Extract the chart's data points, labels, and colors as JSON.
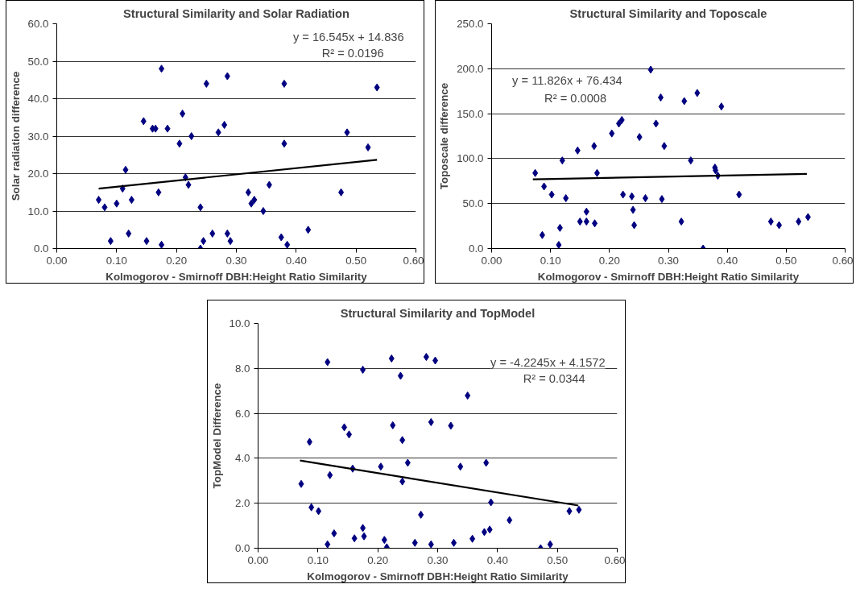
{
  "chart_data": [
    {
      "type": "scatter",
      "title": "Structural Similarity and Solar Radiation",
      "xlabel": "Kolmogorov - Smirnoff DBH:Height Ratio Similarity",
      "ylabel": "Solar radiation difference",
      "xlim": [
        0,
        0.6
      ],
      "xticks": [
        {
          "value": 0,
          "label": "0.00"
        },
        {
          "value": 0.1,
          "label": "0.10"
        },
        {
          "value": 0.2,
          "label": "0.20"
        },
        {
          "value": 0.3,
          "label": "0.30"
        },
        {
          "value": 0.4,
          "label": "0.40"
        },
        {
          "value": 0.5,
          "label": "0.50"
        },
        {
          "value": 0.6,
          "label": "0.60"
        }
      ],
      "ylim": [
        0,
        60
      ],
      "yticks": [
        {
          "value": 0,
          "label": "0.0"
        },
        {
          "value": 10,
          "label": "10.0"
        },
        {
          "value": 20,
          "label": "20.0"
        },
        {
          "value": 30,
          "label": "30.0"
        },
        {
          "value": 40,
          "label": "40.0"
        },
        {
          "value": 50,
          "label": "50.0"
        },
        {
          "value": 60,
          "label": "60.0"
        }
      ],
      "grid": "y",
      "annotations": [
        "y = 16.545x + 14.836",
        "R² = 0.0196"
      ],
      "series": [
        {
          "marker": "diamond",
          "color": "#000080",
          "x": [
            0.07,
            0.08,
            0.09,
            0.1,
            0.11,
            0.115,
            0.12,
            0.125,
            0.145,
            0.15,
            0.16,
            0.165,
            0.17,
            0.175,
            0.175,
            0.185,
            0.205,
            0.21,
            0.215,
            0.22,
            0.225,
            0.24,
            0.24,
            0.245,
            0.25,
            0.26,
            0.27,
            0.28,
            0.285,
            0.285,
            0.29,
            0.32,
            0.325,
            0.33,
            0.345,
            0.355,
            0.375,
            0.38,
            0.38,
            0.385,
            0.42,
            0.475,
            0.485,
            0.52,
            0.535
          ],
          "values": [
            13,
            11,
            2,
            12,
            16,
            21,
            4,
            13,
            34,
            2,
            32,
            32,
            15,
            48,
            1,
            32,
            28,
            36,
            19,
            17,
            30,
            11,
            0,
            2,
            44,
            4,
            31,
            33,
            4,
            46,
            2,
            15,
            12,
            13,
            10,
            17,
            3,
            28,
            44,
            1,
            5,
            15,
            31,
            27,
            43
          ]
        },
        {
          "type": "line",
          "color": "#000000",
          "x": [
            0.07,
            0.535
          ],
          "values": [
            16.0,
            23.7
          ]
        }
      ]
    },
    {
      "type": "scatter",
      "title": "Structural Similarity and Toposcale",
      "xlabel": "Kolmogorov - Smirnoff DBH:Height Ratio Similarity",
      "ylabel": "Toposcale difference",
      "xlim": [
        0,
        0.6
      ],
      "xticks": [
        {
          "value": 0,
          "label": "0.00"
        },
        {
          "value": 0.1,
          "label": "0.10"
        },
        {
          "value": 0.2,
          "label": "0.20"
        },
        {
          "value": 0.3,
          "label": "0.30"
        },
        {
          "value": 0.4,
          "label": "0.40"
        },
        {
          "value": 0.5,
          "label": "0.50"
        },
        {
          "value": 0.6,
          "label": "0.60"
        }
      ],
      "ylim": [
        0,
        250
      ],
      "yticks": [
        {
          "value": 0,
          "label": "0.0"
        },
        {
          "value": 50,
          "label": "50.0"
        },
        {
          "value": 100,
          "label": "100.0"
        },
        {
          "value": 150,
          "label": "150.0"
        },
        {
          "value": 200,
          "label": "200.0"
        },
        {
          "value": 250,
          "label": "250.0"
        }
      ],
      "grid": "y",
      "annotations": [
        "y = 11.826x + 76.434",
        "R² = 0.0008"
      ],
      "series": [
        {
          "marker": "diamond",
          "color": "#000080",
          "x": [
            0.074,
            0.089,
            0.086,
            0.102,
            0.114,
            0.116,
            0.12,
            0.126,
            0.146,
            0.15,
            0.161,
            0.161,
            0.174,
            0.175,
            0.179,
            0.204,
            0.216,
            0.221,
            0.223,
            0.238,
            0.24,
            0.242,
            0.251,
            0.261,
            0.27,
            0.279,
            0.287,
            0.289,
            0.293,
            0.322,
            0.327,
            0.338,
            0.349,
            0.359,
            0.379,
            0.38,
            0.384,
            0.39,
            0.42,
            0.474,
            0.488,
            0.521,
            0.537
          ],
          "values": [
            84,
            69,
            15,
            60,
            4,
            23,
            98,
            56,
            109,
            30,
            41,
            30,
            114,
            28,
            84,
            128,
            139,
            143,
            60,
            58,
            43,
            26,
            124,
            56,
            199,
            139,
            168,
            55,
            114,
            30,
            164,
            98,
            173,
            0,
            90,
            87,
            81,
            158,
            60,
            30,
            26,
            30,
            35
          ]
        },
        {
          "type": "line",
          "color": "#000000",
          "x": [
            0.07,
            0.535
          ],
          "values": [
            77,
            83
          ]
        }
      ]
    },
    {
      "type": "scatter",
      "title": "Structural Similarity and TopModel",
      "xlabel": "Kolmogorov - Smirnoff DBH:Height Ratio Similarity",
      "ylabel": "TopModel Difference",
      "xlim": [
        0,
        0.6
      ],
      "xticks": [
        {
          "value": 0,
          "label": "0.00"
        },
        {
          "value": 0.1,
          "label": "0.10"
        },
        {
          "value": 0.2,
          "label": "0.20"
        },
        {
          "value": 0.3,
          "label": "0.30"
        },
        {
          "value": 0.4,
          "label": "0.40"
        },
        {
          "value": 0.5,
          "label": "0.50"
        },
        {
          "value": 0.6,
          "label": "0.60"
        }
      ],
      "ylim": [
        0,
        10
      ],
      "yticks": [
        {
          "value": 0,
          "label": "0.0"
        },
        {
          "value": 2,
          "label": "2.0"
        },
        {
          "value": 4,
          "label": "4.0"
        },
        {
          "value": 6,
          "label": "6.0"
        },
        {
          "value": 8,
          "label": "8.0"
        },
        {
          "value": 10,
          "label": "10.0"
        }
      ],
      "grid": "y",
      "annotations": [
        "y = -4.2245x + 4.1572",
        "R² = 0.0344"
      ],
      "series": [
        {
          "marker": "diamond",
          "color": "#000080",
          "x": [
            0.072,
            0.086,
            0.089,
            0.101,
            0.116,
            0.116,
            0.12,
            0.127,
            0.144,
            0.152,
            0.158,
            0.161,
            0.175,
            0.175,
            0.177,
            0.205,
            0.211,
            0.215,
            0.223,
            0.225,
            0.238,
            0.241,
            0.241,
            0.25,
            0.262,
            0.272,
            0.281,
            0.289,
            0.289,
            0.296,
            0.322,
            0.327,
            0.338,
            0.35,
            0.358,
            0.378,
            0.381,
            0.387,
            0.389,
            0.42,
            0.472,
            0.488,
            0.52,
            0.536
          ],
          "values": [
            2.86,
            4.73,
            1.82,
            1.65,
            8.28,
            0.17,
            3.25,
            0.66,
            5.38,
            5.06,
            3.54,
            0.44,
            7.94,
            0.9,
            0.53,
            3.63,
            0.37,
            0.04,
            8.44,
            5.47,
            7.67,
            4.81,
            2.97,
            3.8,
            0.24,
            1.49,
            8.51,
            5.61,
            0.17,
            8.35,
            5.45,
            0.24,
            3.63,
            6.79,
            0.42,
            0.72,
            3.8,
            0.83,
            2.04,
            1.25,
            0.0,
            0.17,
            1.65,
            1.71
          ]
        },
        {
          "type": "line",
          "color": "#000000",
          "x": [
            0.07,
            0.535
          ],
          "values": [
            3.9,
            1.9
          ]
        }
      ]
    }
  ]
}
